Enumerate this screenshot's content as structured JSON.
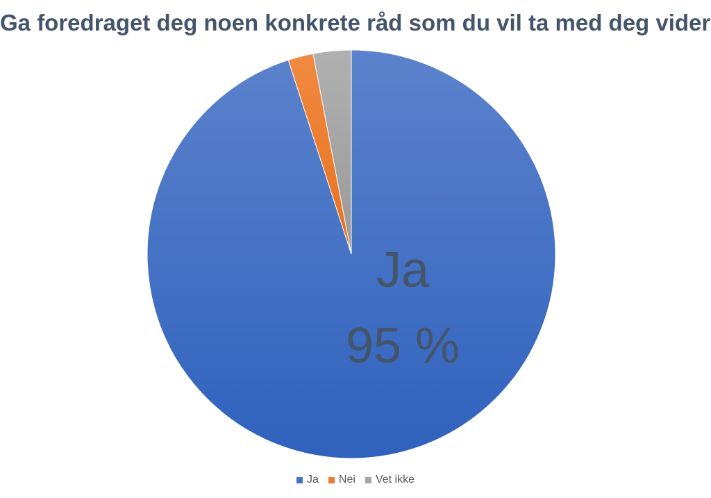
{
  "chart_data": {
    "type": "pie",
    "title": "Ga foredraget deg noen konkrete råd som du vil ta med deg videre?",
    "categories": [
      "Ja",
      "Nei",
      "Vet ikke"
    ],
    "values": [
      95,
      2,
      3
    ],
    "colors": [
      "#4472c4",
      "#ed7d31",
      "#a5a5a5"
    ],
    "data_labels": [
      {
        "category": "Ja",
        "name_text": "Ja",
        "value_text": "95 %"
      }
    ],
    "legend_position": "bottom"
  }
}
